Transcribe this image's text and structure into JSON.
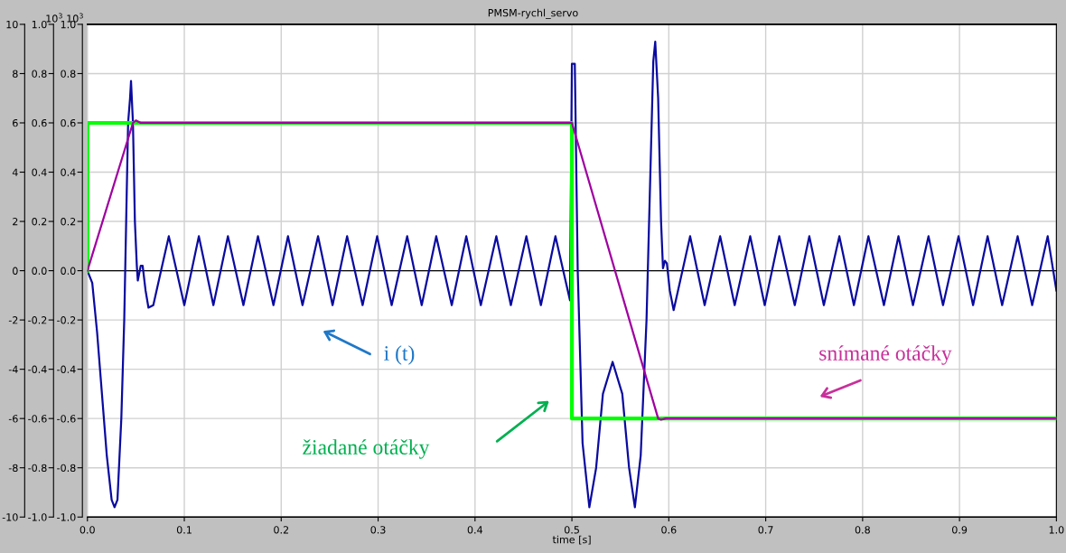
{
  "chart_data": {
    "type": "line",
    "title": "PMSM-rychl_servo",
    "xlabel": "time [s]",
    "y2label": "10$^{3}$",
    "y3label": "10$^{3}$",
    "xlim": [
      0,
      1.0
    ],
    "xticks": [
      {
        "value": 0,
        "label": "0.0"
      },
      0.1,
      0.2,
      0.3,
      0.4,
      0.5,
      0.6,
      0.7,
      0.8,
      0.9,
      {
        "value": 1.0,
        "label": "1.0"
      }
    ],
    "ylim": [
      -10,
      10
    ],
    "yticks": [
      -10,
      -8,
      -6,
      -4,
      -2,
      0,
      2,
      4,
      6,
      8,
      10
    ],
    "y2lim": [
      -1.0,
      1.0
    ],
    "y2ticks": [
      {
        "value": -1.0,
        "label": "-1.0"
      },
      -0.8,
      -0.6,
      -0.4,
      -0.2,
      {
        "value": 0,
        "label": "0.0"
      },
      0.2,
      0.4,
      0.6,
      0.8,
      {
        "value": 1.0,
        "label": "1.0"
      }
    ],
    "y3lim": [
      -1.0,
      1.0
    ],
    "y3ticks": [
      {
        "value": -1.0,
        "label": "-1.0"
      },
      -0.8,
      -0.6,
      -0.4,
      -0.2,
      {
        "value": 0,
        "label": "0.0"
      },
      0.2,
      0.4,
      0.6,
      0.8,
      {
        "value": 1.0,
        "label": "1.0"
      }
    ],
    "grid": true,
    "legend": false,
    "marker": "none",
    "line_style": "solid",
    "ref_lines": [
      {
        "axis": "y",
        "value": 0,
        "color": "#000000"
      }
    ],
    "series": [
      {
        "color": "#0a0aa0",
        "x": [
          0,
          0.005,
          0.01,
          0.015,
          0.02,
          0.025,
          0.028,
          0.031,
          0.035,
          0.038,
          0.04,
          0.042,
          0.044,
          0.045,
          0.047,
          0.049,
          0.051,
          0.052,
          0.055,
          0.057,
          0.06,
          0.063,
          0.068,
          0.076,
          0.084,
          0.1,
          0.115,
          0.13,
          0.145,
          0.161,
          0.176,
          0.192,
          0.207,
          0.222,
          0.238,
          0.253,
          0.268,
          0.284,
          0.299,
          0.314,
          0.33,
          0.345,
          0.36,
          0.376,
          0.391,
          0.406,
          0.422,
          0.437,
          0.453,
          0.468,
          0.483,
          0.498,
          0.5,
          0.503,
          0.506,
          0.511,
          0.518,
          0.525,
          0.532,
          0.542,
          0.552,
          0.559,
          0.565,
          0.571,
          0.577,
          0.581,
          0.584,
          0.586,
          0.589,
          0.592,
          0.594,
          0.596,
          0.598,
          0.601,
          0.605,
          0.622,
          0.637,
          0.653,
          0.668,
          0.684,
          0.699,
          0.714,
          0.73,
          0.745,
          0.76,
          0.776,
          0.791,
          0.806,
          0.822,
          0.837,
          0.852,
          0.868,
          0.883,
          0.899,
          0.914,
          0.929,
          0.944,
          0.96,
          0.975,
          0.991,
          1.0
        ],
        "values": [
          0,
          -0.5,
          -2.5,
          -5,
          -7.5,
          -9.3,
          -9.6,
          -9.3,
          -6,
          -2,
          2,
          6,
          7,
          7.7,
          6,
          2,
          0.2,
          -0.4,
          0.2,
          0.2,
          -0.8,
          -1.5,
          -1.4,
          0,
          1.4,
          -1.4,
          1.4,
          -1.4,
          1.4,
          -1.4,
          1.4,
          -1.4,
          1.4,
          -1.4,
          1.4,
          -1.4,
          1.4,
          -1.4,
          1.4,
          -1.4,
          1.4,
          -1.4,
          1.4,
          -1.4,
          1.4,
          -1.4,
          1.4,
          -1.4,
          1.4,
          -1.4,
          1.4,
          -1.2,
          8.4,
          8.4,
          0,
          -7,
          -9.6,
          -8,
          -5,
          -3.7,
          -5,
          -8,
          -9.6,
          -7.5,
          -2,
          4,
          8.5,
          9.3,
          7,
          2,
          0.1,
          0.4,
          0.3,
          -0.8,
          -1.6,
          1.4,
          -1.4,
          1.4,
          -1.4,
          1.4,
          -1.4,
          1.4,
          -1.4,
          1.4,
          -1.4,
          1.4,
          -1.4,
          1.4,
          -1.4,
          1.4,
          -1.4,
          1.4,
          -1.4,
          1.4,
          -1.4,
          1.4,
          -1.4,
          1.4,
          -1.4,
          1.4,
          -0.8
        ]
      },
      {
        "color": "#00ff00",
        "axis": "y2",
        "x": [
          0,
          0,
          0.5,
          0.5,
          1.0
        ],
        "values": [
          0,
          0.6,
          0.6,
          -0.6,
          -0.6
        ]
      },
      {
        "color": "#a000a0",
        "axis": "y3",
        "x": [
          0,
          0.047,
          0.05,
          0.055,
          0.5,
          0.589,
          0.592,
          0.597,
          1.0
        ],
        "values": [
          0,
          0.6,
          0.61,
          0.6,
          0.6,
          -0.6,
          -0.605,
          -0.6,
          -0.6
        ]
      }
    ],
    "annotations": [
      "i (t)",
      "žiadané otáčky",
      "snímané otáčky"
    ]
  }
}
